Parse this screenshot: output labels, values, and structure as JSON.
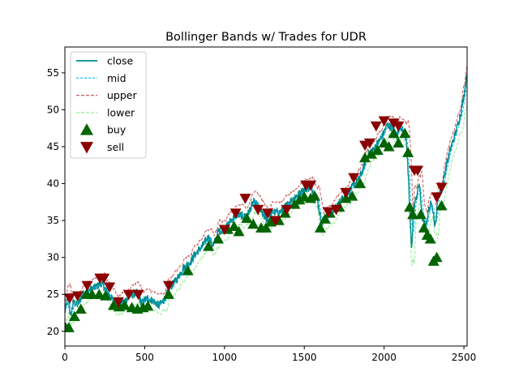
{
  "chart_data": {
    "type": "line",
    "title": "Bollinger Bands w/ Trades for UDR",
    "xlabel": "",
    "ylabel": "",
    "xlim": [
      0,
      2520
    ],
    "ylim": [
      18,
      58.5
    ],
    "xticks": [
      0,
      500,
      1000,
      1500,
      2000,
      2500
    ],
    "yticks": [
      20,
      25,
      30,
      35,
      40,
      45,
      50,
      55
    ],
    "legend_position": "upper-left",
    "grid": false,
    "colors": {
      "close": "#008b8b",
      "mid": "#00bfff",
      "upper": "#cd5c5c",
      "lower": "#90ee90",
      "buy": "#006400",
      "sell": "#8b0000"
    },
    "legend": [
      {
        "key": "close",
        "label": "close"
      },
      {
        "key": "mid",
        "label": "mid"
      },
      {
        "key": "upper",
        "label": "upper"
      },
      {
        "key": "lower",
        "label": "lower"
      },
      {
        "key": "buy",
        "label": "buy"
      },
      {
        "key": "sell",
        "label": "sell"
      }
    ],
    "close_anchors": [
      [
        0,
        22.5
      ],
      [
        20,
        24.8
      ],
      [
        35,
        22.0
      ],
      [
        55,
        24.0
      ],
      [
        80,
        23.5
      ],
      [
        110,
        25.0
      ],
      [
        140,
        25.5
      ],
      [
        180,
        25.8
      ],
      [
        230,
        26.5
      ],
      [
        260,
        25.5
      ],
      [
        300,
        24.2
      ],
      [
        330,
        23.5
      ],
      [
        370,
        24.0
      ],
      [
        410,
        24.8
      ],
      [
        450,
        25.2
      ],
      [
        480,
        23.8
      ],
      [
        520,
        24.5
      ],
      [
        560,
        24.0
      ],
      [
        590,
        23.5
      ],
      [
        620,
        24.2
      ],
      [
        660,
        26.0
      ],
      [
        700,
        27.0
      ],
      [
        740,
        28.5
      ],
      [
        780,
        29.2
      ],
      [
        820,
        30.5
      ],
      [
        860,
        31.5
      ],
      [
        900,
        32.8
      ],
      [
        930,
        31.5
      ],
      [
        960,
        33.5
      ],
      [
        1000,
        33.8
      ],
      [
        1040,
        35.0
      ],
      [
        1080,
        35.8
      ],
      [
        1120,
        35.5
      ],
      [
        1150,
        36.0
      ],
      [
        1180,
        37.5
      ],
      [
        1210,
        37.0
      ],
      [
        1240,
        35.8
      ],
      [
        1270,
        35.0
      ],
      [
        1300,
        36.2
      ],
      [
        1340,
        36.0
      ],
      [
        1380,
        36.8
      ],
      [
        1420,
        37.8
      ],
      [
        1460,
        38.5
      ],
      [
        1500,
        39.2
      ],
      [
        1540,
        39.5
      ],
      [
        1580,
        38.0
      ],
      [
        1610,
        34.5
      ],
      [
        1640,
        35.5
      ],
      [
        1680,
        36.2
      ],
      [
        1720,
        37.5
      ],
      [
        1760,
        38.5
      ],
      [
        1800,
        39.5
      ],
      [
        1840,
        40.5
      ],
      [
        1870,
        42.0
      ],
      [
        1900,
        44.0
      ],
      [
        1930,
        44.5
      ],
      [
        1960,
        45.5
      ],
      [
        1990,
        46.5
      ],
      [
        2020,
        48.0
      ],
      [
        2050,
        47.5
      ],
      [
        2080,
        46.5
      ],
      [
        2100,
        48.0
      ],
      [
        2120,
        47.0
      ],
      [
        2140,
        46.0
      ],
      [
        2160,
        37.0
      ],
      [
        2172,
        31.0
      ],
      [
        2185,
        36.5
      ],
      [
        2200,
        38.0
      ],
      [
        2220,
        40.0
      ],
      [
        2240,
        35.5
      ],
      [
        2260,
        34.0
      ],
      [
        2280,
        36.5
      ],
      [
        2300,
        37.5
      ],
      [
        2320,
        34.0
      ],
      [
        2340,
        38.5
      ],
      [
        2360,
        39.0
      ],
      [
        2390,
        42.5
      ],
      [
        2420,
        45.0
      ],
      [
        2450,
        47.0
      ],
      [
        2480,
        49.5
      ],
      [
        2500,
        52.0
      ],
      [
        2520,
        55.0
      ]
    ],
    "buy_points": [
      [
        5,
        20.5
      ],
      [
        25,
        20.5
      ],
      [
        60,
        22.0
      ],
      [
        100,
        23.0
      ],
      [
        135,
        25.0
      ],
      [
        170,
        25.0
      ],
      [
        215,
        25.0
      ],
      [
        255,
        24.8
      ],
      [
        305,
        23.5
      ],
      [
        340,
        23.3
      ],
      [
        375,
        23.5
      ],
      [
        420,
        23.2
      ],
      [
        455,
        23.0
      ],
      [
        490,
        23.2
      ],
      [
        520,
        23.4
      ],
      [
        650,
        25.0
      ],
      [
        770,
        28.2
      ],
      [
        900,
        31.5
      ],
      [
        960,
        32.5
      ],
      [
        1020,
        33.8
      ],
      [
        1060,
        34.2
      ],
      [
        1090,
        33.5
      ],
      [
        1140,
        35.3
      ],
      [
        1180,
        34.5
      ],
      [
        1230,
        34.0
      ],
      [
        1260,
        34.0
      ],
      [
        1290,
        34.8
      ],
      [
        1340,
        35.0
      ],
      [
        1380,
        36.0
      ],
      [
        1440,
        37.2
      ],
      [
        1470,
        37.8
      ],
      [
        1500,
        38.2
      ],
      [
        1540,
        38.0
      ],
      [
        1565,
        38.3
      ],
      [
        1600,
        34.0
      ],
      [
        1630,
        35.2
      ],
      [
        1660,
        36.0
      ],
      [
        1720,
        36.8
      ],
      [
        1760,
        38.0
      ],
      [
        1800,
        38.3
      ],
      [
        1850,
        40.0
      ],
      [
        1880,
        43.5
      ],
      [
        1920,
        44.0
      ],
      [
        1960,
        44.5
      ],
      [
        2000,
        45.5
      ],
      [
        2030,
        45.0
      ],
      [
        2060,
        46.8
      ],
      [
        2090,
        45.5
      ],
      [
        2130,
        46.8
      ],
      [
        2150,
        44.2
      ],
      [
        2160,
        36.8
      ],
      [
        2180,
        35.8
      ],
      [
        2230,
        35.8
      ],
      [
        2250,
        34.0
      ],
      [
        2270,
        33.0
      ],
      [
        2290,
        32.5
      ],
      [
        2310,
        29.5
      ],
      [
        2330,
        30.0
      ],
      [
        2360,
        37.0
      ]
    ],
    "sell_points": [
      [
        30,
        24.5
      ],
      [
        80,
        24.8
      ],
      [
        140,
        26.2
      ],
      [
        220,
        27.2
      ],
      [
        245,
        27.2
      ],
      [
        280,
        26.0
      ],
      [
        335,
        24.0
      ],
      [
        400,
        25.0
      ],
      [
        460,
        25.0
      ],
      [
        650,
        26.2
      ],
      [
        1000,
        33.8
      ],
      [
        1070,
        36.0
      ],
      [
        1130,
        38.0
      ],
      [
        1210,
        36.5
      ],
      [
        1270,
        36.0
      ],
      [
        1320,
        35.0
      ],
      [
        1390,
        36.5
      ],
      [
        1510,
        39.8
      ],
      [
        1540,
        39.8
      ],
      [
        1650,
        36.2
      ],
      [
        1700,
        36.5
      ],
      [
        1760,
        38.8
      ],
      [
        1810,
        40.8
      ],
      [
        1880,
        45.2
      ],
      [
        1910,
        45.5
      ],
      [
        1950,
        47.8
      ],
      [
        2000,
        48.5
      ],
      [
        2060,
        48.2
      ],
      [
        2090,
        47.8
      ],
      [
        2190,
        41.8
      ],
      [
        2210,
        41.8
      ],
      [
        2330,
        38.2
      ],
      [
        2360,
        39.5
      ]
    ],
    "band_settings": {
      "window": 20,
      "width_std": 2
    }
  }
}
